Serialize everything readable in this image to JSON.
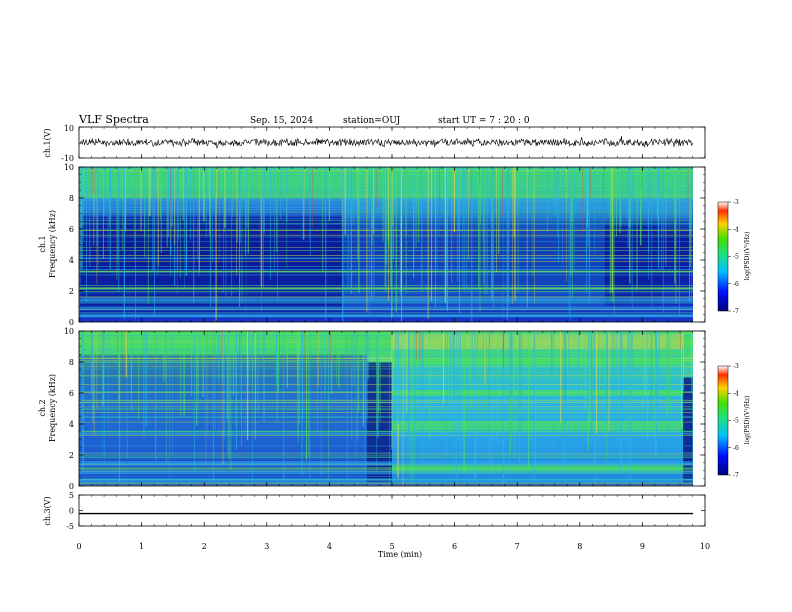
{
  "header": {
    "title": "VLF Spectra",
    "date": "Sep. 15, 2024",
    "station": "station=OUJ",
    "start_ut": "start  UT =   7 : 20 : 0"
  },
  "chart_data": [
    {
      "type": "line",
      "panel": "ch1-waveform",
      "ylabel": "ch.1(V)",
      "ylim": [
        -10,
        10
      ],
      "yticks": [
        "10",
        "-10"
      ],
      "series": [
        {
          "name": "ch.1",
          "description_level": 0
        }
      ]
    },
    {
      "type": "heatmap",
      "panel": "ch1-spectrogram",
      "ylabel_top": "ch.1",
      "ylabel": "Frequency (kHz)",
      "ylim": [
        0,
        10
      ],
      "yticks": [
        "0",
        "2",
        "4",
        "6",
        "8",
        "10"
      ],
      "colorbar": {
        "label": "log(PSD)(V²/Hz)",
        "range": [
          -7,
          -3
        ],
        "ticks": [
          "-3",
          "-4",
          "-5",
          "-6",
          "-7"
        ]
      }
    },
    {
      "type": "heatmap",
      "panel": "ch2-spectrogram",
      "ylabel_top": "ch.2",
      "ylabel": "Frequency (kHz)",
      "ylim": [
        0,
        10
      ],
      "yticks": [
        "0",
        "2",
        "4",
        "6",
        "8",
        "10"
      ],
      "colorbar": {
        "label": "log(PSD)(V²/Hz)",
        "range": [
          -7,
          -3
        ],
        "ticks": [
          "-3",
          "-4",
          "-5",
          "-6",
          "-7"
        ]
      }
    },
    {
      "type": "line",
      "panel": "ch3-waveform",
      "ylabel": "ch.3(V)",
      "ylim": [
        -5,
        5
      ],
      "yticks": [
        "5",
        "0",
        "-5"
      ],
      "series": [
        {
          "name": "ch.3",
          "constant_value": -1
        }
      ]
    }
  ],
  "xaxis": {
    "label": "Time (min)",
    "range": [
      0,
      10
    ],
    "ticks": [
      "0",
      "1",
      "2",
      "3",
      "4",
      "5",
      "6",
      "7",
      "8",
      "9",
      "10"
    ]
  },
  "colors": {
    "low": "#0a1a8c",
    "mid": "#1fa9e6",
    "high": "#3fe06a",
    "peak": "#e8e04a",
    "line": "#000000"
  }
}
